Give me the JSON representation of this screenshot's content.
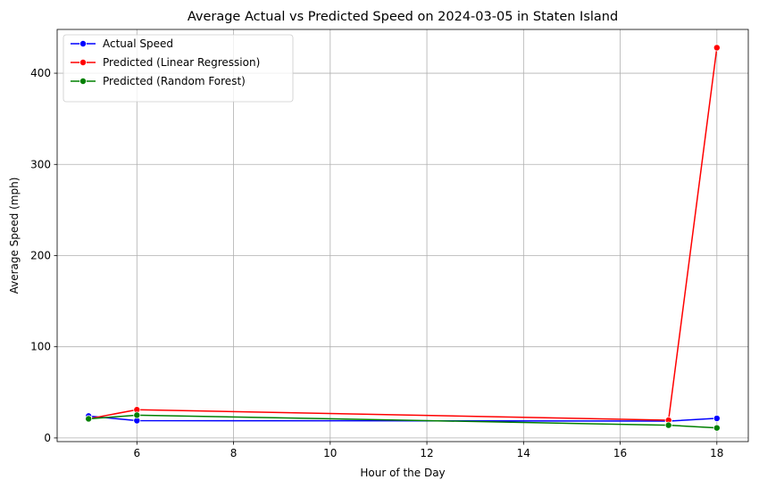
{
  "chart_data": {
    "type": "line",
    "title": "Average Actual vs Predicted Speed on 2024-03-05 in Staten Island",
    "xlabel": "Hour of the Day",
    "ylabel": "Average Speed (mph)",
    "x": [
      5,
      6,
      17,
      18
    ],
    "xlim": [
      4.35,
      18.65
    ],
    "ylim": [
      -4,
      448
    ],
    "xticks": [
      6,
      8,
      10,
      12,
      14,
      16,
      18
    ],
    "yticks": [
      0,
      100,
      200,
      300,
      400
    ],
    "grid": true,
    "legend_position": "top-left",
    "series": [
      {
        "name": "Actual Speed",
        "color": "#0000ff",
        "values": [
          24,
          19,
          18.5,
          21.5
        ]
      },
      {
        "name": "Predicted (Linear Regression)",
        "color": "#ff0000",
        "values": [
          21,
          31,
          19.5,
          428
        ]
      },
      {
        "name": "Predicted (Random Forest)",
        "color": "#008000",
        "values": [
          21,
          25,
          14,
          11
        ]
      }
    ]
  }
}
